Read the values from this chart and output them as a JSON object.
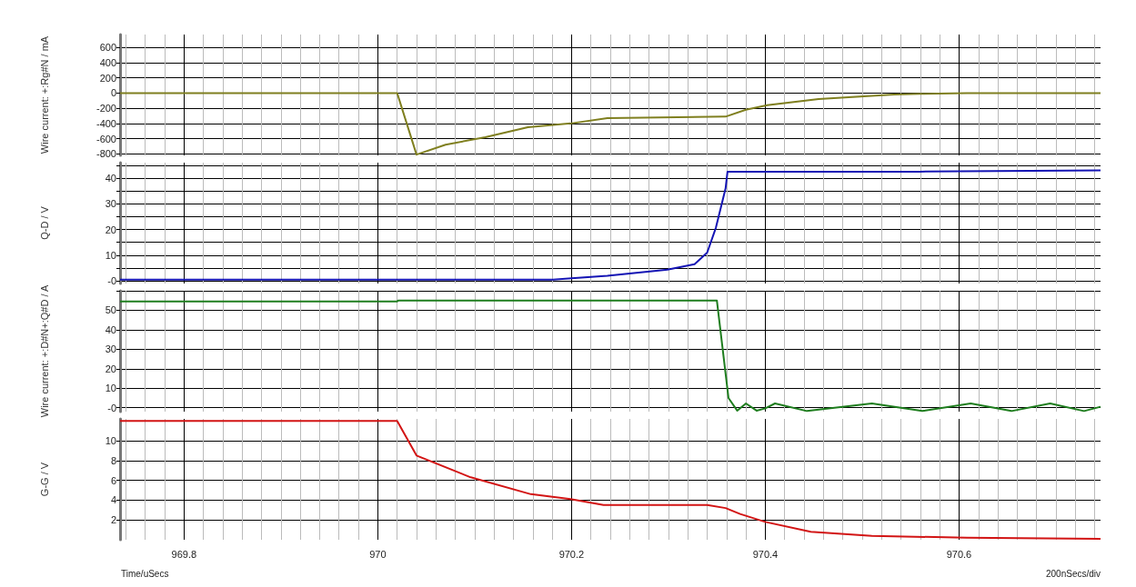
{
  "chart_data": [
    {
      "type": "line",
      "ylabel": "Wire current: +:Rg#N / mA",
      "xlim": [
        969.734,
        970.746
      ],
      "ylim": [
        -820,
        770
      ],
      "grid": true,
      "tick_labels": "y",
      "xticks": [
        {
          "value": 969.74,
          "label": null
        },
        {
          "value": 969.76,
          "label": null
        },
        {
          "value": 969.78,
          "label": null
        },
        969.8,
        {
          "value": 969.82,
          "label": null
        },
        {
          "value": 969.84,
          "label": null
        },
        {
          "value": 969.86,
          "label": null
        },
        {
          "value": 969.88,
          "label": null
        },
        {
          "value": 969.9,
          "label": null
        },
        {
          "value": 969.92,
          "label": null
        },
        {
          "value": 969.94,
          "label": null
        },
        {
          "value": 969.96,
          "label": null
        },
        {
          "value": 969.98,
          "label": null
        },
        970,
        {
          "value": 970.02,
          "label": null
        },
        {
          "value": 970.04,
          "label": null
        },
        {
          "value": 970.06,
          "label": null
        },
        {
          "value": 970.08,
          "label": null
        },
        {
          "value": 970.1,
          "label": null
        },
        {
          "value": 970.12,
          "label": null
        },
        {
          "value": 970.14,
          "label": null
        },
        {
          "value": 970.16,
          "label": null
        },
        {
          "value": 970.18,
          "label": null
        },
        970.2,
        {
          "value": 970.22,
          "label": null
        },
        {
          "value": 970.24,
          "label": null
        },
        {
          "value": 970.26,
          "label": null
        },
        {
          "value": 970.28,
          "label": null
        },
        {
          "value": 970.3,
          "label": null
        },
        {
          "value": 970.32,
          "label": null
        },
        {
          "value": 970.34,
          "label": null
        },
        {
          "value": 970.36,
          "label": null
        },
        {
          "value": 970.38,
          "label": null
        },
        970.4,
        {
          "value": 970.42,
          "label": null
        },
        {
          "value": 970.44,
          "label": null
        },
        {
          "value": 970.46,
          "label": null
        },
        {
          "value": 970.48,
          "label": null
        },
        {
          "value": 970.5,
          "label": null
        },
        {
          "value": 970.52,
          "label": null
        },
        {
          "value": 970.54,
          "label": null
        },
        {
          "value": 970.56,
          "label": null
        },
        {
          "value": 970.58,
          "label": null
        },
        970.6,
        {
          "value": 970.62,
          "label": null
        },
        {
          "value": 970.64,
          "label": null
        },
        {
          "value": 970.66,
          "label": null
        },
        {
          "value": 970.68,
          "label": null
        },
        {
          "value": 970.7,
          "label": null
        },
        {
          "value": 970.72,
          "label": null
        },
        {
          "value": 970.74,
          "label": null
        }
      ],
      "yticks": [
        -800,
        -600,
        -400,
        -200,
        0,
        200,
        400,
        600
      ],
      "series": [
        {
          "color": "#7f7f1f",
          "x": [
            969.734,
            970.02,
            970.04,
            970.07,
            970.111,
            970.155,
            970.199,
            970.237,
            970.359,
            970.38,
            970.402,
            970.455,
            970.533,
            970.559,
            970.608,
            970.746
          ],
          "values": [
            0,
            0,
            -810,
            -680,
            -580,
            -450,
            -400,
            -330,
            -310,
            -220,
            -160,
            -80,
            -20,
            -10,
            0,
            0
          ]
        }
      ]
    },
    {
      "type": "line",
      "ylabel": "Q-D / V",
      "xlim": [
        969.734,
        970.746
      ],
      "ylim": [
        -1,
        46
      ],
      "grid": true,
      "tick_labels": "y",
      "xticks": [
        {
          "value": 969.74,
          "label": null
        },
        {
          "value": 969.76,
          "label": null
        },
        {
          "value": 969.78,
          "label": null
        },
        969.8,
        {
          "value": 969.82,
          "label": null
        },
        {
          "value": 969.84,
          "label": null
        },
        {
          "value": 969.86,
          "label": null
        },
        {
          "value": 969.88,
          "label": null
        },
        {
          "value": 969.9,
          "label": null
        },
        {
          "value": 969.92,
          "label": null
        },
        {
          "value": 969.94,
          "label": null
        },
        {
          "value": 969.96,
          "label": null
        },
        {
          "value": 969.98,
          "label": null
        },
        970,
        {
          "value": 970.02,
          "label": null
        },
        {
          "value": 970.04,
          "label": null
        },
        {
          "value": 970.06,
          "label": null
        },
        {
          "value": 970.08,
          "label": null
        },
        {
          "value": 970.1,
          "label": null
        },
        {
          "value": 970.12,
          "label": null
        },
        {
          "value": 970.14,
          "label": null
        },
        {
          "value": 970.16,
          "label": null
        },
        {
          "value": 970.18,
          "label": null
        },
        970.2,
        {
          "value": 970.22,
          "label": null
        },
        {
          "value": 970.24,
          "label": null
        },
        {
          "value": 970.26,
          "label": null
        },
        {
          "value": 970.28,
          "label": null
        },
        {
          "value": 970.3,
          "label": null
        },
        {
          "value": 970.32,
          "label": null
        },
        {
          "value": 970.34,
          "label": null
        },
        {
          "value": 970.36,
          "label": null
        },
        {
          "value": 970.38,
          "label": null
        },
        970.4,
        {
          "value": 970.42,
          "label": null
        },
        {
          "value": 970.44,
          "label": null
        },
        {
          "value": 970.46,
          "label": null
        },
        {
          "value": 970.48,
          "label": null
        },
        {
          "value": 970.5,
          "label": null
        },
        {
          "value": 970.52,
          "label": null
        },
        {
          "value": 970.54,
          "label": null
        },
        {
          "value": 970.56,
          "label": null
        },
        {
          "value": 970.58,
          "label": null
        },
        970.6,
        {
          "value": 970.62,
          "label": null
        },
        {
          "value": 970.64,
          "label": null
        },
        {
          "value": 970.66,
          "label": null
        },
        {
          "value": 970.68,
          "label": null
        },
        {
          "value": 970.7,
          "label": null
        },
        {
          "value": 970.72,
          "label": null
        },
        {
          "value": 970.74,
          "label": null
        }
      ],
      "yticks": [
        {
          "value": 0,
          "label": "-0"
        },
        {
          "value": 5,
          "label": null
        },
        10,
        {
          "value": 15,
          "label": null
        },
        20,
        {
          "value": 25,
          "label": null
        },
        30,
        {
          "value": 35,
          "label": null
        },
        40,
        {
          "value": 45,
          "label": null
        }
      ],
      "series": [
        {
          "color": "#1414b4",
          "x": [
            969.734,
            970.181,
            970.2,
            970.237,
            970.299,
            970.327,
            970.34,
            970.349,
            970.359,
            970.361,
            970.559,
            970.746
          ],
          "values": [
            0.5,
            0.5,
            1,
            2,
            4.4,
            6.5,
            11,
            20.7,
            36,
            42.5,
            42.5,
            43
          ]
        }
      ]
    },
    {
      "type": "line",
      "ylabel": "Wire current: +:D#N+:Q#D / A",
      "xlim": [
        969.734,
        970.746
      ],
      "ylim": [
        -2,
        60
      ],
      "grid": true,
      "tick_labels": "y",
      "xticks": [
        {
          "value": 969.74,
          "label": null
        },
        {
          "value": 969.76,
          "label": null
        },
        {
          "value": 969.78,
          "label": null
        },
        969.8,
        {
          "value": 969.82,
          "label": null
        },
        {
          "value": 969.84,
          "label": null
        },
        {
          "value": 969.86,
          "label": null
        },
        {
          "value": 969.88,
          "label": null
        },
        {
          "value": 969.9,
          "label": null
        },
        {
          "value": 969.92,
          "label": null
        },
        {
          "value": 969.94,
          "label": null
        },
        {
          "value": 969.96,
          "label": null
        },
        {
          "value": 969.98,
          "label": null
        },
        970,
        {
          "value": 970.02,
          "label": null
        },
        {
          "value": 970.04,
          "label": null
        },
        {
          "value": 970.06,
          "label": null
        },
        {
          "value": 970.08,
          "label": null
        },
        {
          "value": 970.1,
          "label": null
        },
        {
          "value": 970.12,
          "label": null
        },
        {
          "value": 970.14,
          "label": null
        },
        {
          "value": 970.16,
          "label": null
        },
        {
          "value": 970.18,
          "label": null
        },
        970.2,
        {
          "value": 970.22,
          "label": null
        },
        {
          "value": 970.24,
          "label": null
        },
        {
          "value": 970.26,
          "label": null
        },
        {
          "value": 970.28,
          "label": null
        },
        {
          "value": 970.3,
          "label": null
        },
        {
          "value": 970.32,
          "label": null
        },
        {
          "value": 970.34,
          "label": null
        },
        {
          "value": 970.36,
          "label": null
        },
        {
          "value": 970.38,
          "label": null
        },
        970.4,
        {
          "value": 970.42,
          "label": null
        },
        {
          "value": 970.44,
          "label": null
        },
        {
          "value": 970.46,
          "label": null
        },
        {
          "value": 970.48,
          "label": null
        },
        {
          "value": 970.5,
          "label": null
        },
        {
          "value": 970.52,
          "label": null
        },
        {
          "value": 970.54,
          "label": null
        },
        {
          "value": 970.56,
          "label": null
        },
        {
          "value": 970.58,
          "label": null
        },
        970.6,
        {
          "value": 970.62,
          "label": null
        },
        {
          "value": 970.64,
          "label": null
        },
        {
          "value": 970.66,
          "label": null
        },
        {
          "value": 970.68,
          "label": null
        },
        {
          "value": 970.7,
          "label": null
        },
        {
          "value": 970.72,
          "label": null
        },
        {
          "value": 970.74,
          "label": null
        }
      ],
      "yticks": [
        {
          "value": 0,
          "label": "-0"
        },
        10,
        20,
        30,
        40,
        50,
        {
          "value": 60,
          "label": null
        }
      ],
      "series": [
        {
          "color": "#1e7d1e",
          "x": [
            969.734,
            970.02,
            970.021,
            970.35,
            970.362,
            970.371,
            970.38,
            970.391,
            970.4,
            970.41,
            970.443,
            970.51,
            970.562,
            970.612,
            970.654,
            970.694,
            970.729,
            970.746
          ],
          "values": [
            54.5,
            54.5,
            55,
            55,
            5,
            -1.5,
            2.2,
            -1.5,
            -0.3,
            2.2,
            -1.7,
            2.2,
            -1.7,
            2.2,
            -1.7,
            2.2,
            -1.7,
            0.5
          ]
        }
      ]
    },
    {
      "type": "line",
      "ylabel": "G-G / V",
      "xlabel": "Time/uSecs",
      "annotations": [
        "200nSecs/div"
      ],
      "xlim": [
        969.734,
        970.746
      ],
      "ylim": [
        0,
        12.2
      ],
      "grid": true,
      "xticks": [
        {
          "value": 969.74,
          "label": null
        },
        {
          "value": 969.76,
          "label": null
        },
        {
          "value": 969.78,
          "label": null
        },
        969.8,
        {
          "value": 969.82,
          "label": null
        },
        {
          "value": 969.84,
          "label": null
        },
        {
          "value": 969.86,
          "label": null
        },
        {
          "value": 969.88,
          "label": null
        },
        {
          "value": 969.9,
          "label": null
        },
        {
          "value": 969.92,
          "label": null
        },
        {
          "value": 969.94,
          "label": null
        },
        {
          "value": 969.96,
          "label": null
        },
        {
          "value": 969.98,
          "label": null
        },
        970,
        {
          "value": 970.02,
          "label": null
        },
        {
          "value": 970.04,
          "label": null
        },
        {
          "value": 970.06,
          "label": null
        },
        {
          "value": 970.08,
          "label": null
        },
        {
          "value": 970.1,
          "label": null
        },
        {
          "value": 970.12,
          "label": null
        },
        {
          "value": 970.14,
          "label": null
        },
        {
          "value": 970.16,
          "label": null
        },
        {
          "value": 970.18,
          "label": null
        },
        970.2,
        {
          "value": 970.22,
          "label": null
        },
        {
          "value": 970.24,
          "label": null
        },
        {
          "value": 970.26,
          "label": null
        },
        {
          "value": 970.28,
          "label": null
        },
        {
          "value": 970.3,
          "label": null
        },
        {
          "value": 970.32,
          "label": null
        },
        {
          "value": 970.34,
          "label": null
        },
        {
          "value": 970.36,
          "label": null
        },
        {
          "value": 970.38,
          "label": null
        },
        970.4,
        {
          "value": 970.42,
          "label": null
        },
        {
          "value": 970.44,
          "label": null
        },
        {
          "value": 970.46,
          "label": null
        },
        {
          "value": 970.48,
          "label": null
        },
        {
          "value": 970.5,
          "label": null
        },
        {
          "value": 970.52,
          "label": null
        },
        {
          "value": 970.54,
          "label": null
        },
        {
          "value": 970.56,
          "label": null
        },
        {
          "value": 970.58,
          "label": null
        },
        970.6,
        {
          "value": 970.62,
          "label": null
        },
        {
          "value": 970.64,
          "label": null
        },
        {
          "value": 970.66,
          "label": null
        },
        {
          "value": 970.68,
          "label": null
        },
        {
          "value": 970.7,
          "label": null
        },
        {
          "value": 970.72,
          "label": null
        },
        {
          "value": 970.74,
          "label": null
        }
      ],
      "yticks": [
        2,
        4,
        6,
        8,
        10
      ],
      "series": [
        {
          "color": "#d21414",
          "x": [
            969.734,
            970.02,
            970.04,
            970.096,
            970.158,
            970.199,
            970.233,
            970.34,
            970.359,
            970.374,
            970.4,
            970.447,
            970.51,
            970.608,
            970.746
          ],
          "values": [
            12,
            12,
            8.5,
            6.3,
            4.6,
            4.1,
            3.5,
            3.5,
            3.2,
            2.6,
            1.8,
            0.8,
            0.4,
            0.2,
            0.1
          ]
        }
      ]
    }
  ]
}
